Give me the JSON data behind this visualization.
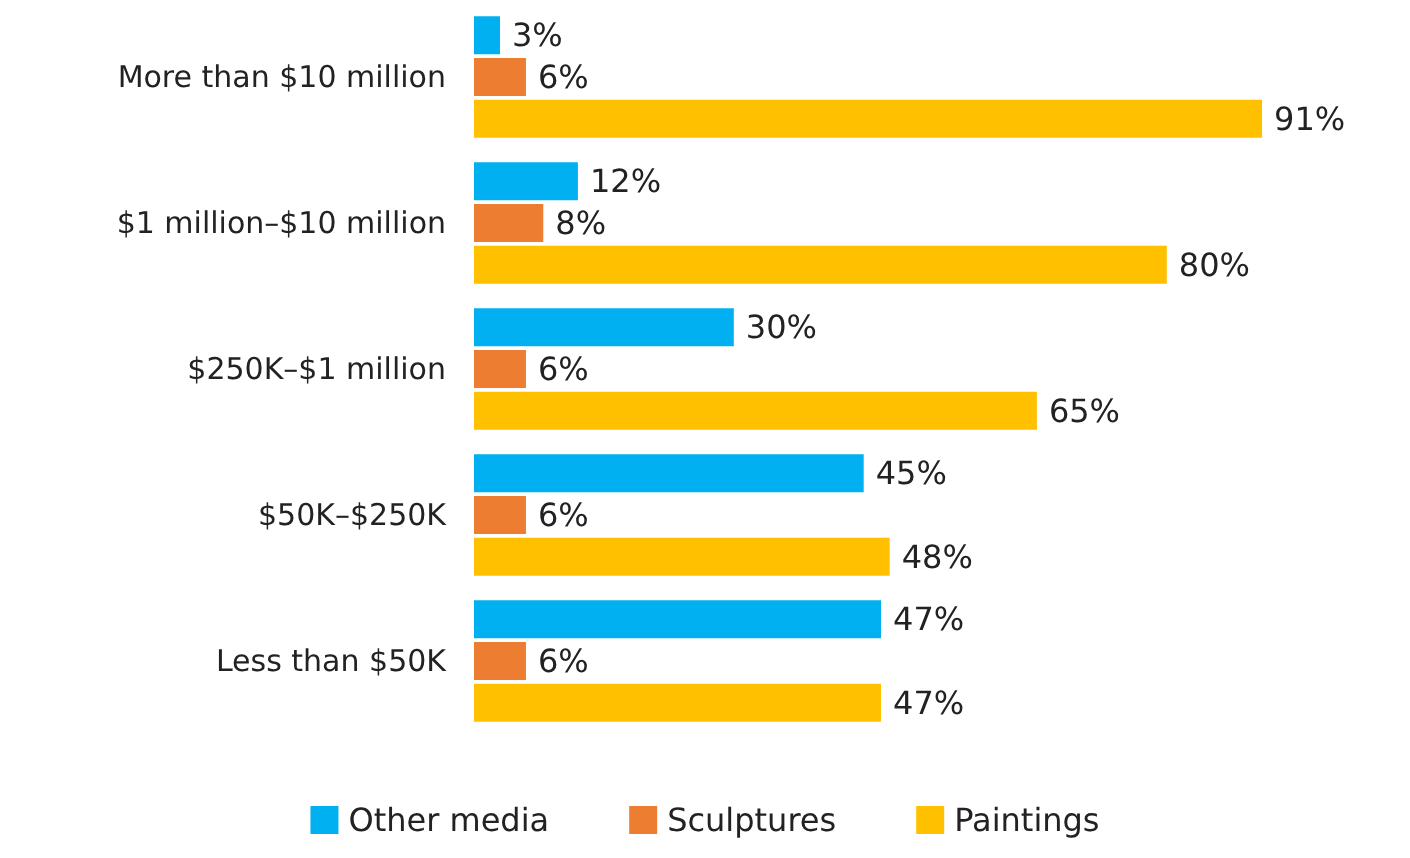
{
  "chart_data": {
    "type": "bar",
    "orientation": "horizontal",
    "categories": [
      "More than $10 million",
      "$1 million–$10 million",
      "$250K–$1 million",
      "$50K–$250K",
      "Less than $50K"
    ],
    "series": [
      {
        "name": "Other media",
        "color": "#00b0f0",
        "values": [
          3,
          12,
          30,
          45,
          47
        ],
        "value_labels": [
          "3%",
          "12%",
          "30%",
          "45%",
          "47%"
        ]
      },
      {
        "name": "Sculptures",
        "color": "#ed7d31",
        "values": [
          6,
          8,
          6,
          6,
          6
        ],
        "value_labels": [
          "6%",
          "8%",
          "6%",
          "6%",
          "6%"
        ]
      },
      {
        "name": "Paintings",
        "color": "#ffc000",
        "values": [
          91,
          80,
          65,
          48,
          47
        ],
        "value_labels": [
          "91%",
          "80%",
          "65%",
          "48%",
          "47%"
        ]
      }
    ],
    "legend": "bottom",
    "grid": false
  }
}
